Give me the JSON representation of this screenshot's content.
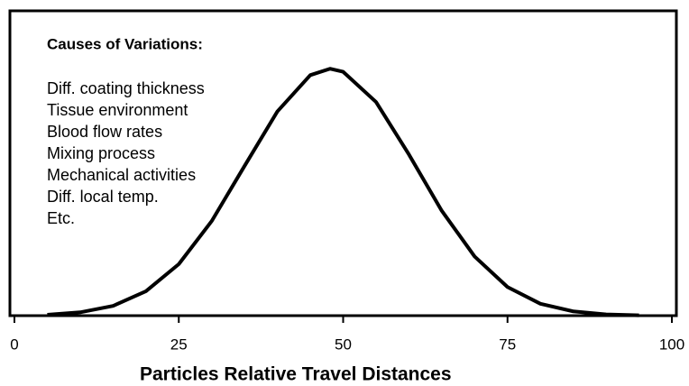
{
  "chart_data": {
    "type": "line",
    "annotation_title": "Causes of Variations:",
    "annotations": [
      "Diff. coating thickness",
      "Tissue environment",
      "Blood flow rates",
      "Mixing process",
      "Mechanical activities",
      "Diff. local temp.",
      "Etc."
    ],
    "x_label": "Particles Relative Travel Distances",
    "x": [
      5,
      10,
      15,
      20,
      25,
      30,
      35,
      40,
      45,
      48,
      50,
      55,
      60,
      65,
      70,
      75,
      80,
      85,
      90,
      95
    ],
    "series": [
      {
        "color": "#000000",
        "values": [
          0.003,
          0.011,
          0.032,
          0.08,
          0.169,
          0.31,
          0.491,
          0.67,
          0.789,
          0.81,
          0.8,
          0.701,
          0.529,
          0.344,
          0.194,
          0.094,
          0.039,
          0.014,
          0.004,
          0.001
        ]
      }
    ],
    "xlim": [
      0,
      100
    ],
    "xticks": [
      0,
      25,
      50,
      75,
      100
    ],
    "ylim": [
      0,
      1
    ]
  }
}
